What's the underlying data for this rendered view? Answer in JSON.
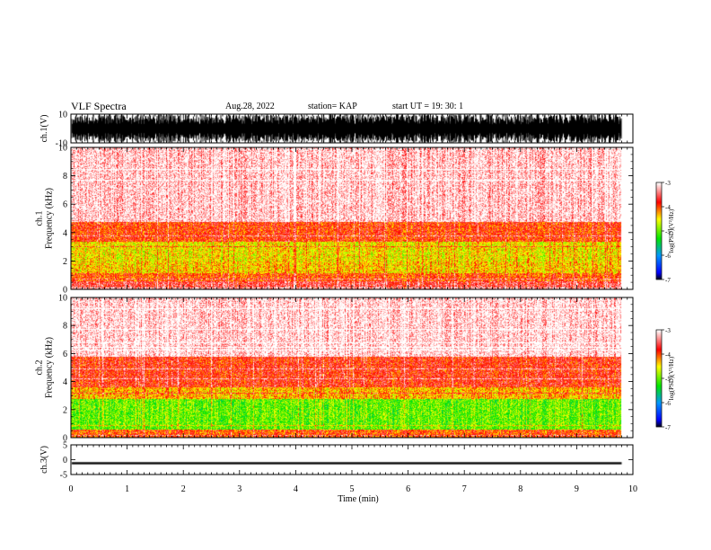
{
  "header": {
    "title": "VLF Spectra",
    "date": "Aug.28, 2022",
    "station": "station= KAP",
    "start": "start  UT  =    19: 30: 1"
  },
  "chart_data": [
    {
      "type": "line",
      "panel": "ch1-waveform",
      "ylabel": "ch.1(V)",
      "ylim": [
        -10,
        10
      ],
      "yticks": [
        10,
        -10
      ],
      "xlim": [
        0,
        10
      ],
      "xmax_data": 9.8,
      "description_values": {
        "amplitude_range": [
          -10,
          10
        ]
      }
    },
    {
      "type": "heatmap",
      "panel": "ch1-spectrogram",
      "ylabel": "ch.1\nFrequency  (kHz)",
      "ylim": [
        0,
        10
      ],
      "yticks": [
        0,
        2,
        4,
        6,
        8,
        10
      ],
      "xlim": [
        0,
        10
      ],
      "xmax_data": 9.8,
      "bands_khz": [
        {
          "from": 0,
          "to": 0.6,
          "log_psd": -3.6
        },
        {
          "from": 0.6,
          "to": 1.2,
          "log_psd": -4.0
        },
        {
          "from": 1.2,
          "to": 2.0,
          "log_psd": -4.4
        },
        {
          "from": 2.0,
          "to": 3.4,
          "log_psd": -4.5
        },
        {
          "from": 3.4,
          "to": 4.8,
          "log_psd": -3.9
        },
        {
          "from": 4.8,
          "to": 10,
          "log_psd": -3.15
        }
      ],
      "colorbar": {
        "label": "log(PSD)(V²/Hz)",
        "range": [
          -7,
          -3
        ],
        "ticks": [
          -3,
          -4,
          -5,
          -6,
          -7
        ]
      }
    },
    {
      "type": "heatmap",
      "panel": "ch2-spectrogram",
      "ylabel": "ch.2\nFrequency  (kHz)",
      "ylim": [
        0,
        10
      ],
      "yticks": [
        0,
        2,
        4,
        6,
        8,
        10
      ],
      "xlim": [
        0,
        10
      ],
      "xmax_data": 9.8,
      "bands_khz": [
        {
          "from": 0,
          "to": 0.6,
          "log_psd": -4.0
        },
        {
          "from": 0.6,
          "to": 2.8,
          "log_psd": -5.0
        },
        {
          "from": 2.8,
          "to": 3.6,
          "log_psd": -4.3
        },
        {
          "from": 3.6,
          "to": 5.8,
          "log_psd": -3.8
        },
        {
          "from": 5.8,
          "to": 10,
          "log_psd": -3.1
        }
      ],
      "colorbar": {
        "label": "log(PSD)(V²/Hz)",
        "range": [
          -7,
          -3
        ],
        "ticks": [
          -3,
          -4,
          -5,
          -6,
          -7
        ]
      }
    },
    {
      "type": "line",
      "panel": "ch3-waveform",
      "ylabel": "ch.3(V)",
      "ylim": [
        -5,
        5
      ],
      "yticks": [
        5,
        0,
        -5
      ],
      "xlim": [
        0,
        10
      ],
      "xmax_data": 9.8,
      "level_v": -1.2
    }
  ],
  "xaxis": {
    "label": "Time  (min)",
    "ticks": [
      "0",
      "1",
      "2",
      "3",
      "4",
      "5",
      "6",
      "7",
      "8",
      "9",
      "10"
    ]
  },
  "colors": {
    "colormap": [
      "#ffffff",
      "#ff0000",
      "#ffff00",
      "#00ff00",
      "#00a0ff",
      "#0000ff",
      "#000000"
    ]
  }
}
